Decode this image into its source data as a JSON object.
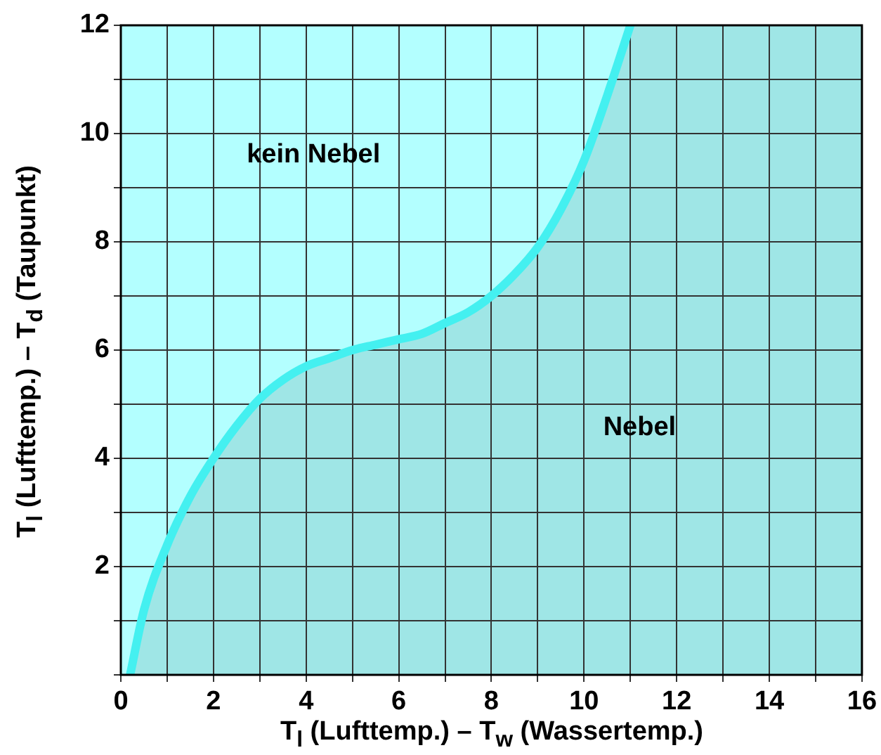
{
  "chart_data": {
    "type": "area",
    "xlabel": "T$_{l}$ (Lufttemp.) – T$_{w}$ (Wassertemp.)",
    "ylabel": "T$_{l}$ (Lufttemp.) – T$_{d}$ (Taupunkt)",
    "x": [
      0.2,
      0.5,
      1,
      1.5,
      2,
      2.5,
      3,
      3.5,
      4,
      4.5,
      5,
      5.5,
      6,
      6.5,
      7,
      7.5,
      8,
      8.5,
      9,
      9.5,
      10,
      10.5,
      11
    ],
    "series": [
      {
        "color": "#44f0f0",
        "values": [
          0,
          1.2,
          2.4,
          3.3,
          4,
          4.6,
          5.1,
          5.45,
          5.7,
          5.85,
          6,
          6.1,
          6.2,
          6.3,
          6.5,
          6.7,
          7,
          7.4,
          7.9,
          8.6,
          9.5,
          10.7,
          12
        ]
      }
    ],
    "xlim": [
      0,
      16
    ],
    "ylim": [
      0,
      12
    ],
    "xticks": [
      0,
      {
        "value": 1,
        "label": null
      },
      2,
      {
        "value": 3,
        "label": null
      },
      4,
      {
        "value": 5,
        "label": null
      },
      6,
      {
        "value": 7,
        "label": null
      },
      8,
      {
        "value": 9,
        "label": null
      },
      10,
      {
        "value": 11,
        "label": null
      },
      12,
      {
        "value": 13,
        "label": null
      },
      14,
      {
        "value": 15,
        "label": null
      },
      16
    ],
    "yticks": [
      {
        "value": 0,
        "label": null
      },
      {
        "value": 1,
        "label": null
      },
      2,
      {
        "value": 3,
        "label": null
      },
      4,
      {
        "value": 5,
        "label": null
      },
      6,
      {
        "value": 7,
        "label": null
      },
      8,
      {
        "value": 9,
        "label": null
      },
      10,
      {
        "value": 11,
        "label": null
      },
      12
    ],
    "grid": true,
    "bands": [
      {
        "axis": "x",
        "from": 0,
        "to": 11,
        "color": "#b3ffff"
      },
      {
        "axis": "x",
        "from": 11,
        "to": 16,
        "color": "#9fe6e6"
      }
    ],
    "annotations": [
      "kein Nebel",
      "Nebel"
    ]
  }
}
